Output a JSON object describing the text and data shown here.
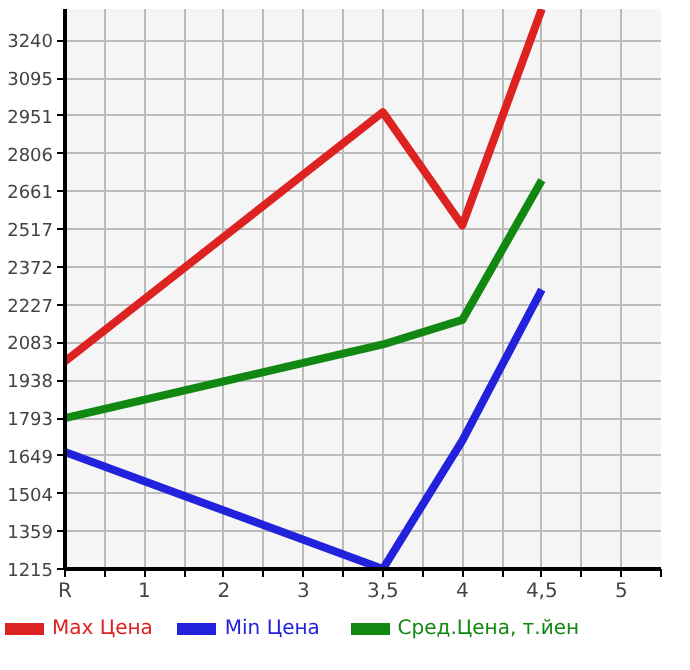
{
  "chart_data": {
    "type": "line",
    "categories": [
      "R",
      "1",
      "2",
      "3",
      "3,5",
      "4",
      "4,5",
      "5"
    ],
    "ylim": [
      1215,
      3360
    ],
    "yticks": [
      1215,
      1359,
      1504,
      1649,
      1793,
      1938,
      2083,
      2227,
      2372,
      2517,
      2661,
      2806,
      2951,
      3095,
      3240
    ],
    "grid": true,
    "legend": "bottom",
    "line_style": "solid",
    "series": [
      {
        "name": "Max Цена",
        "color": "#dd2222",
        "values": [
          2010,
          null,
          null,
          null,
          2965,
          2531,
          3360,
          null
        ]
      },
      {
        "name": "Min Цена",
        "color": "#2222dd",
        "values": [
          1663,
          null,
          null,
          null,
          1215,
          1707,
          2285,
          null
        ]
      },
      {
        "name": "Сред.Цена, т.йен",
        "color": "#118811",
        "values": [
          1793,
          null,
          null,
          null,
          2075,
          2169,
          2704,
          null
        ]
      }
    ]
  }
}
